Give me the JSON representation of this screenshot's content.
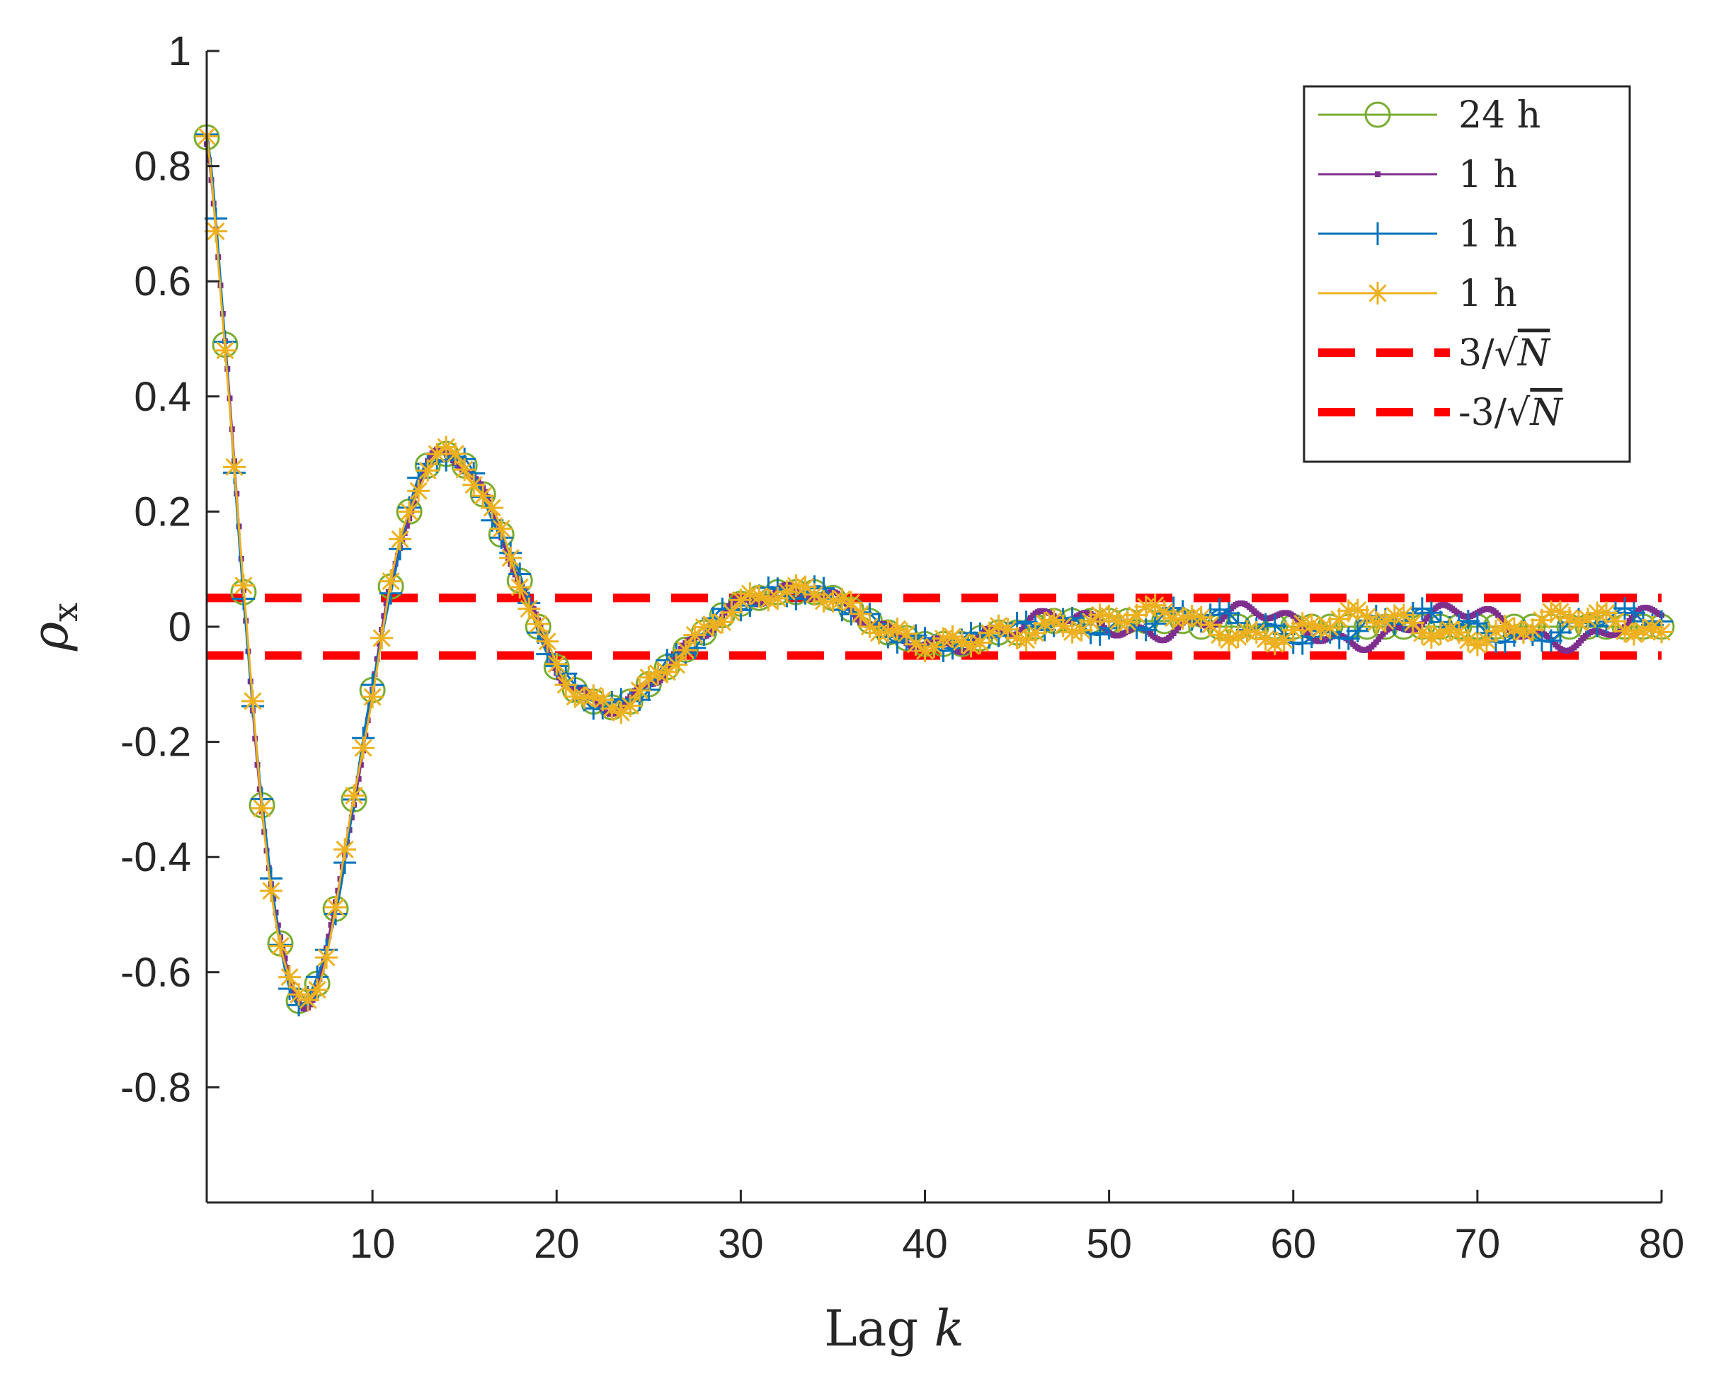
{
  "chart_data": {
    "type": "line",
    "title": "",
    "xlabel": "Lag",
    "xlabel_var": "k",
    "ylabel_sym": "ρ",
    "ylabel_sub": "x",
    "xlim": [
      1,
      80
    ],
    "ylim": [
      -1,
      1
    ],
    "xticks": [
      10,
      20,
      30,
      40,
      50,
      60,
      70,
      80
    ],
    "yticks": [
      1,
      0.8,
      0.6,
      0.4,
      0.2,
      0,
      -0.2,
      -0.4,
      -0.6,
      -0.8
    ],
    "ytick_labels": [
      "1",
      "0.8",
      "0.6",
      "0.4",
      "0.2",
      "0",
      "-0.2",
      "-0.4",
      "-0.6",
      "-0.8"
    ],
    "legend_position": "top-right",
    "base_curve": {
      "k": [
        1,
        2,
        3,
        4,
        5,
        6,
        7,
        8,
        9,
        10,
        11,
        12,
        13,
        14,
        15,
        16,
        17,
        18,
        19,
        20,
        21,
        22,
        23,
        24,
        25,
        26,
        27,
        28,
        29,
        30,
        31,
        32,
        33,
        34,
        35,
        36,
        37,
        38,
        39,
        40,
        41,
        42,
        43,
        44,
        45,
        46,
        47,
        48,
        49,
        50,
        51,
        52,
        53,
        54,
        55,
        56,
        57,
        58,
        59,
        60,
        61,
        62,
        63,
        64,
        65,
        66,
        67,
        68,
        69,
        70,
        71,
        72,
        73,
        74,
        75,
        76,
        77,
        78,
        79,
        80
      ],
      "rho": [
        0.85,
        0.49,
        0.06,
        -0.31,
        -0.55,
        -0.65,
        -0.62,
        -0.49,
        -0.3,
        -0.11,
        0.07,
        0.2,
        0.28,
        0.3,
        0.28,
        0.23,
        0.16,
        0.08,
        0.0,
        -0.07,
        -0.11,
        -0.13,
        -0.14,
        -0.13,
        -0.1,
        -0.07,
        -0.04,
        -0.01,
        0.02,
        0.04,
        0.05,
        0.06,
        0.06,
        0.06,
        0.05,
        0.03,
        0.01,
        -0.01,
        -0.02,
        -0.03,
        -0.03,
        -0.03,
        -0.02,
        -0.01,
        -0.01,
        0.0,
        0.01,
        0.01,
        0.01,
        0.01,
        0.01,
        0.01,
        0.01,
        0.01,
        0.0,
        0.0,
        0.0,
        0.0,
        0.0,
        0.0,
        0.0,
        0.0,
        0.0,
        0.0,
        0.0,
        0.0,
        0.0,
        0.0,
        0.0,
        0.0,
        0.0,
        0.0,
        0.0,
        0.0,
        0.0,
        0.0,
        0.0,
        0.0,
        0.0,
        0.0
      ]
    },
    "series": [
      {
        "name": "24 h",
        "color": "#77AC30",
        "marker": "circle",
        "step": 1,
        "noise_amp": 0.0,
        "phase": 0.0
      },
      {
        "name": "1 h",
        "color": "#7E2F8E",
        "marker": "dot",
        "step": 0.125,
        "noise_amp": 0.03,
        "phase": 1.3
      },
      {
        "name": "1 h",
        "color": "#0072BD",
        "marker": "plus",
        "step": 0.5,
        "noise_amp": 0.02,
        "phase": 2.6
      },
      {
        "name": "1 h",
        "color": "#EDB120",
        "marker": "asterisk",
        "step": 0.5,
        "noise_amp": 0.02,
        "phase": 4.1
      }
    ],
    "threshold_lines": [
      {
        "label_num": "3",
        "label_prefix": "",
        "value": 0.05,
        "color": "#FF0000"
      },
      {
        "label_num": "3",
        "label_prefix": "-",
        "value": -0.05,
        "color": "#FF0000"
      }
    ]
  }
}
